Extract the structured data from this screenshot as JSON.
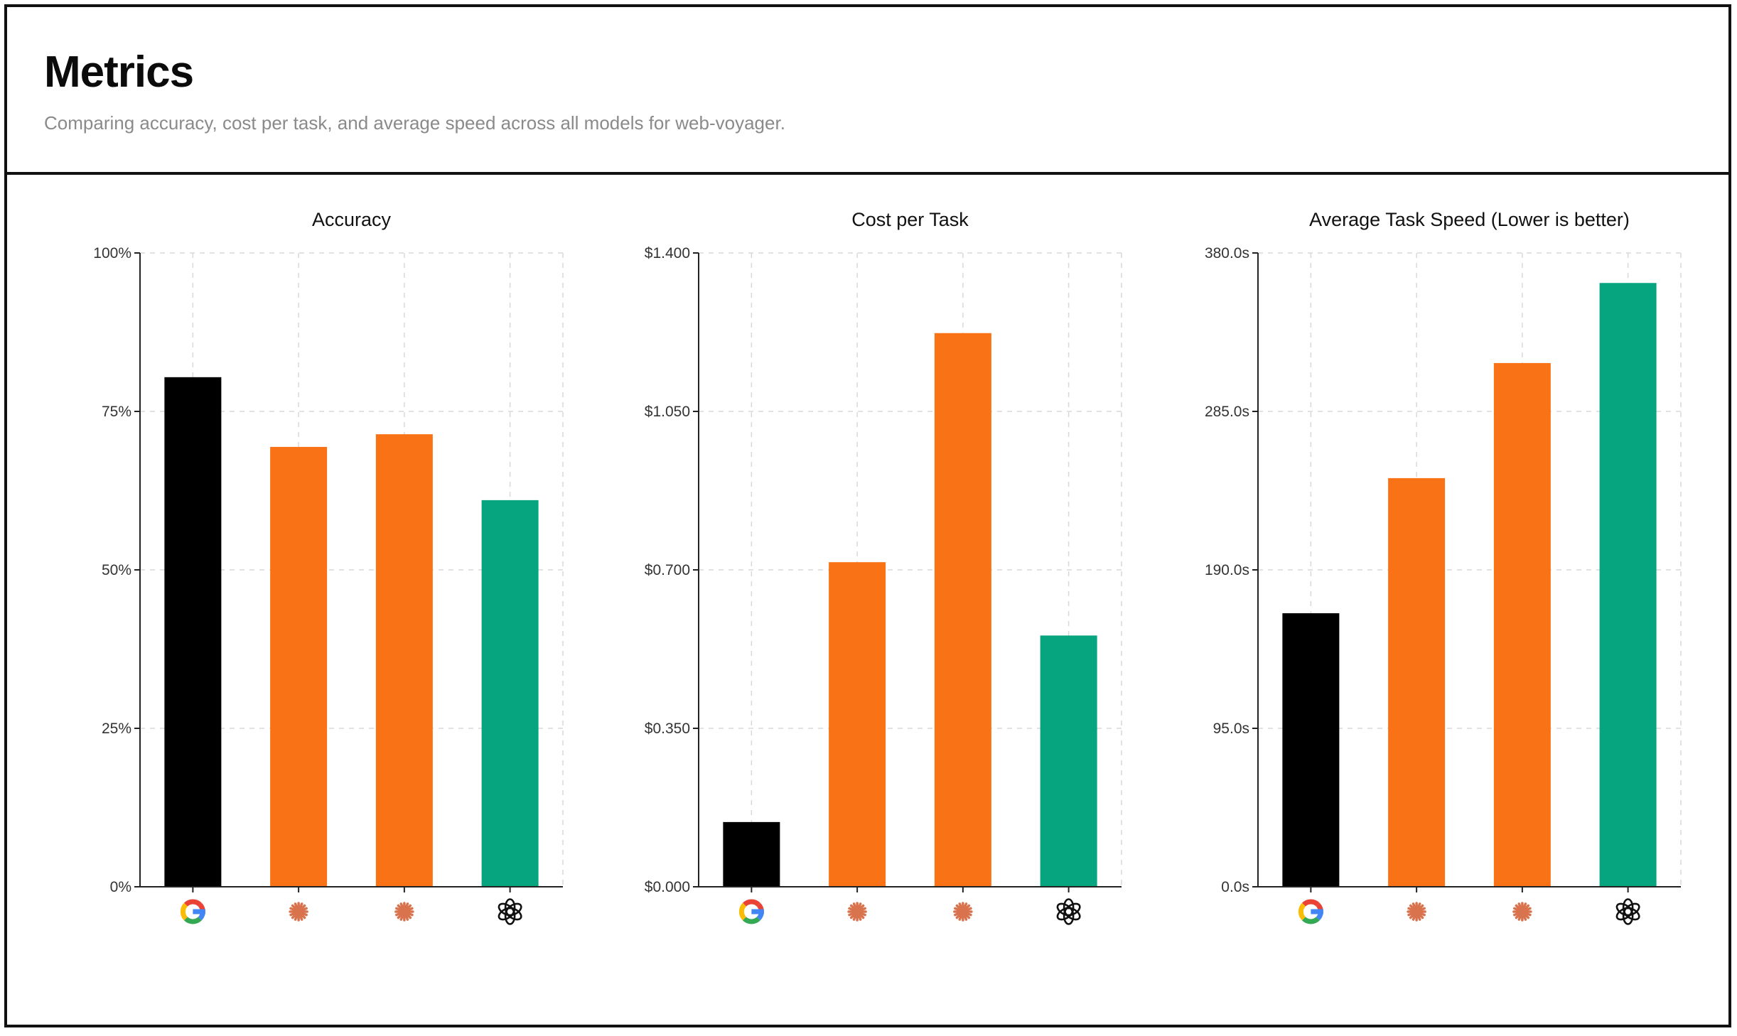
{
  "header": {
    "title": "Metrics",
    "subtitle": "Comparing accuracy, cost per task, and average speed across all models for web-voyager."
  },
  "colors": {
    "google": "#000000",
    "anthropic": "#f97316",
    "openai": "#06a57f",
    "anthropic_icon": "#d9734e"
  },
  "models": [
    {
      "icon": "google-icon",
      "color": "#000000"
    },
    {
      "icon": "anthropic-icon",
      "color": "#f97316"
    },
    {
      "icon": "anthropic-icon",
      "color": "#f97316"
    },
    {
      "icon": "openai-icon",
      "color": "#06a57f"
    }
  ],
  "chart_data": [
    {
      "type": "bar",
      "title": "Accuracy",
      "xlabel": "",
      "ylabel": "",
      "ylim": [
        0,
        100
      ],
      "yticks": [
        "0%",
        "25%",
        "50%",
        "75%",
        "100%"
      ],
      "categories": [
        "google-icon",
        "anthropic-icon",
        "anthropic-icon",
        "openai-icon"
      ],
      "values": [
        80.4,
        69.4,
        71.4,
        61.0
      ],
      "grid": true,
      "legend": "none"
    },
    {
      "type": "bar",
      "title": "Cost per Task",
      "xlabel": "",
      "ylabel": "",
      "ylim": [
        0,
        1.4
      ],
      "yticks": [
        "$0.000",
        "$0.350",
        "$0.700",
        "$1.050",
        "$1.400"
      ],
      "categories": [
        "google-icon",
        "anthropic-icon",
        "anthropic-icon",
        "openai-icon"
      ],
      "values": [
        0.143,
        0.717,
        1.223,
        0.555
      ],
      "grid": true,
      "legend": "none"
    },
    {
      "type": "bar",
      "title": "Average Task Speed (Lower is better)",
      "xlabel": "",
      "ylabel": "",
      "ylim": [
        0,
        380
      ],
      "yticks": [
        "0.0s",
        "95.0s",
        "190.0s",
        "285.0s",
        "380.0s"
      ],
      "categories": [
        "google-icon",
        "anthropic-icon",
        "anthropic-icon",
        "openai-icon"
      ],
      "values": [
        164.0,
        245.0,
        314.0,
        362.0
      ],
      "grid": true,
      "legend": "none"
    }
  ]
}
